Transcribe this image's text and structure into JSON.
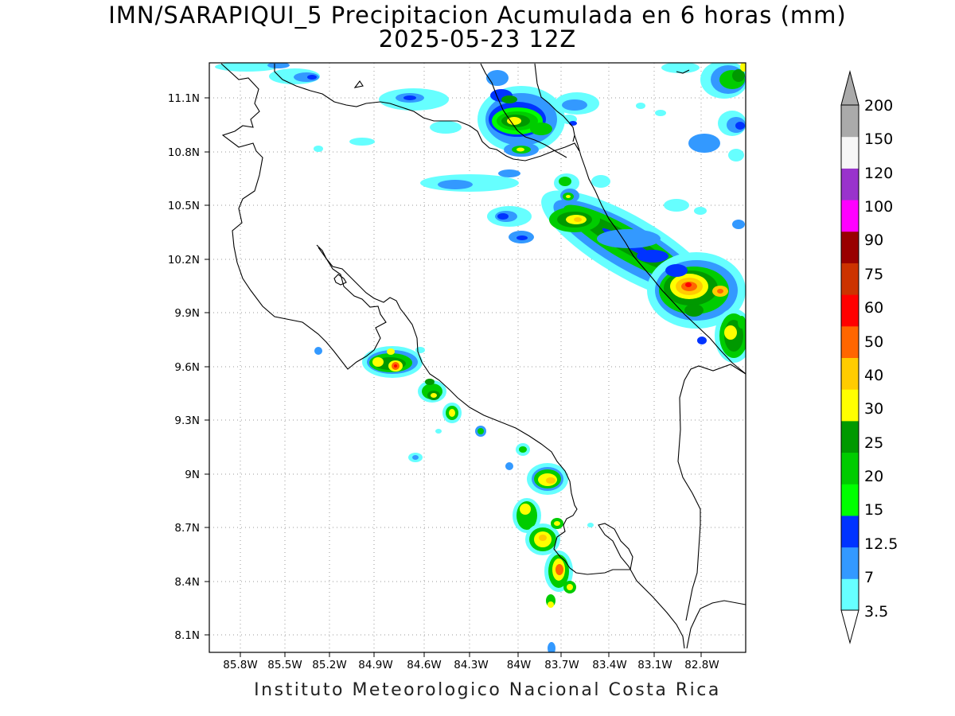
{
  "title": {
    "line1": "IMN/SARAPIQUI_5 Precipitacion Acumulada en 6 horas (mm)",
    "line2": "2025-05-23 12Z"
  },
  "footer": "Instituto Meteorologico Nacional Costa Rica",
  "map": {
    "lon_labels": [
      "85.8W",
      "85.5W",
      "85.2W",
      "84.9W",
      "84.6W",
      "84.3W",
      "84W",
      "83.7W",
      "83.4W",
      "83.1W",
      "82.8W"
    ],
    "lat_labels": [
      "11.1N",
      "10.8N",
      "10.5N",
      "10.2N",
      "9.9N",
      "9.6N",
      "9.3N",
      "9N",
      "8.7N",
      "8.4N",
      "8.1N"
    ],
    "gridlines": true,
    "colors": {
      "coastline": "#000000",
      "grid": "#9a9a9a"
    }
  },
  "colorbar": {
    "labels": [
      "3.5",
      "7",
      "12.5",
      "15",
      "20",
      "25",
      "30",
      "40",
      "50",
      "60",
      "75",
      "90",
      "100",
      "120",
      "150",
      "200"
    ],
    "colors": [
      "#66ffff",
      "#3399ff",
      "#0033ff",
      "#00ff00",
      "#00cc00",
      "#009900",
      "#ffff00",
      "#ffcc00",
      "#ff6600",
      "#ff0000",
      "#cc3300",
      "#990000",
      "#ff00ff",
      "#9933cc",
      "#f7f7f7",
      "#aaaaaa"
    ]
  }
}
